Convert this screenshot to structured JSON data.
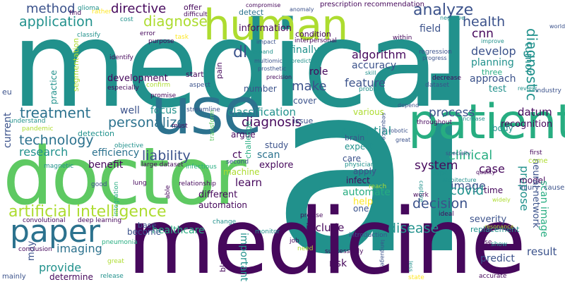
{
  "palette": {
    "dark_purple": "#46085c",
    "indigo": "#3b528b",
    "blue": "#2c728e",
    "teal": "#21918c",
    "green_teal": "#27ad81",
    "green": "#5ec962",
    "lime": "#addc30",
    "yellow": "#fde725"
  },
  "words": [
    {
      "text": "medical",
      "color": "teal"
    },
    {
      "text": "ai",
      "color": "teal"
    },
    {
      "text": "medicine",
      "color": "dark_purple"
    },
    {
      "text": "doctor",
      "color": "green"
    },
    {
      "text": "use",
      "color": "blue"
    },
    {
      "text": "patient",
      "color": "green_teal"
    },
    {
      "text": "human",
      "color": "lime"
    },
    {
      "text": "paper",
      "color": "blue"
    },
    {
      "text": "artificial intelligence",
      "color": "lime"
    },
    {
      "text": "diagnose",
      "color": "lime"
    },
    {
      "text": "method",
      "color": "indigo"
    },
    {
      "text": "directive",
      "color": "dark_purple"
    },
    {
      "text": "application",
      "color": "teal"
    },
    {
      "text": "analyze",
      "color": "indigo"
    },
    {
      "text": "health",
      "color": "indigo"
    },
    {
      "text": "cnn",
      "color": "dark_purple"
    },
    {
      "text": "information",
      "color": "dark_purple"
    },
    {
      "text": "dl",
      "color": "indigo"
    },
    {
      "text": "field",
      "color": "indigo"
    },
    {
      "text": "diagnostic",
      "color": "teal"
    },
    {
      "text": "treatment",
      "color": "blue"
    },
    {
      "text": "personalize",
      "color": "blue"
    },
    {
      "text": "algorithm",
      "color": "dark_purple"
    },
    {
      "text": "accuracy",
      "color": "indigo"
    },
    {
      "text": "develop",
      "color": "indigo"
    },
    {
      "text": "planning",
      "color": "teal"
    },
    {
      "text": "approach",
      "color": "indigo"
    },
    {
      "text": "tumor",
      "color": "teal"
    },
    {
      "text": "feature",
      "color": "indigo"
    },
    {
      "text": "make",
      "color": "indigo"
    },
    {
      "text": "role",
      "color": "dark_purple"
    },
    {
      "text": "finally",
      "color": "teal"
    },
    {
      "text": "number",
      "color": "indigo"
    },
    {
      "text": "test",
      "color": "teal"
    },
    {
      "text": "three",
      "color": "green_teal"
    },
    {
      "text": "technology",
      "color": "blue"
    },
    {
      "text": "research",
      "color": "teal"
    },
    {
      "text": "efficiency",
      "color": "blue"
    },
    {
      "text": "detection",
      "color": "teal"
    },
    {
      "text": "development",
      "color": "dark_purple"
    },
    {
      "text": "classification",
      "color": "teal"
    },
    {
      "text": "diagnosis",
      "color": "dark_purple"
    },
    {
      "text": "process",
      "color": "indigo"
    },
    {
      "text": "datum",
      "color": "dark_purple"
    },
    {
      "text": "recognition",
      "color": "dark_purple"
    },
    {
      "text": "body",
      "color": "teal"
    },
    {
      "text": "liability",
      "color": "indigo"
    },
    {
      "text": "potential",
      "color": "teal"
    },
    {
      "text": "clinical",
      "color": "green_teal"
    },
    {
      "text": "case",
      "color": "dark_purple"
    },
    {
      "text": "system",
      "color": "dark_purple"
    },
    {
      "text": "image",
      "color": "indigo"
    },
    {
      "text": "benefit",
      "color": "dark_purple"
    },
    {
      "text": "ct",
      "color": "dark_purple"
    },
    {
      "text": "scan",
      "color": "blue"
    },
    {
      "text": "study",
      "color": "indigo"
    },
    {
      "text": "focus",
      "color": "teal"
    },
    {
      "text": "argue",
      "color": "dark_purple"
    },
    {
      "text": "cover",
      "color": "indigo"
    },
    {
      "text": "various",
      "color": "lime"
    },
    {
      "text": "expect",
      "color": "teal"
    },
    {
      "text": "brain",
      "color": "indigo"
    },
    {
      "text": "covid",
      "color": "teal"
    },
    {
      "text": "decision",
      "color": "indigo"
    },
    {
      "text": "propose",
      "color": "teal"
    },
    {
      "text": "model",
      "color": "dark_purple"
    },
    {
      "text": "time",
      "color": "dark_purple"
    },
    {
      "text": "explore",
      "color": "dark_purple"
    },
    {
      "text": "care",
      "color": "indigo"
    },
    {
      "text": "apply",
      "color": "indigo"
    },
    {
      "text": "infect",
      "color": "dark_purple"
    },
    {
      "text": "machine",
      "color": "lime"
    },
    {
      "text": "learn",
      "color": "dark_purple"
    },
    {
      "text": "different",
      "color": "dark_purple"
    },
    {
      "text": "automation",
      "color": "dark_purple"
    },
    {
      "text": "automate",
      "color": "green_teal"
    },
    {
      "text": "help",
      "color": "yellow"
    },
    {
      "text": "one",
      "color": "indigo"
    },
    {
      "text": "include",
      "color": "dark_purple"
    },
    {
      "text": "disease",
      "color": "teal"
    },
    {
      "text": "severity",
      "color": "indigo"
    },
    {
      "text": "healthcare",
      "color": "green_teal"
    },
    {
      "text": "become",
      "color": "indigo"
    },
    {
      "text": "imaging",
      "color": "blue"
    },
    {
      "text": "provide",
      "color": "teal"
    },
    {
      "text": "may",
      "color": "indigo"
    },
    {
      "text": "determine",
      "color": "dark_purple"
    },
    {
      "text": "important",
      "color": "teal"
    },
    {
      "text": "risk",
      "color": "dark_purple"
    },
    {
      "text": "predict",
      "color": "indigo"
    },
    {
      "text": "result",
      "color": "indigo"
    },
    {
      "text": "scan image",
      "color": "green_teal"
    },
    {
      "text": "neural network",
      "color": "indigo"
    },
    {
      "text": "replacement",
      "color": "teal"
    },
    {
      "text": "current",
      "color": "indigo"
    },
    {
      "text": "practice",
      "color": "teal"
    },
    {
      "text": "segmentation",
      "color": "lime"
    },
    {
      "text": "challenge",
      "color": "green_teal"
    },
    {
      "text": "blackbox",
      "color": "dark_purple"
    },
    {
      "text": "pain",
      "color": "dark_purple"
    },
    {
      "text": "start",
      "color": "dark_purple"
    },
    {
      "text": "offer",
      "color": "dark_purple"
    },
    {
      "text": "eu",
      "color": "indigo"
    },
    {
      "text": "well",
      "color": "indigo"
    },
    {
      "text": "condition",
      "color": "dark_purple"
    },
    {
      "text": "detect",
      "color": "blue"
    },
    {
      "text": "issue",
      "color": "indigo"
    },
    {
      "text": "large dataset",
      "color": "dark_purple"
    },
    {
      "text": "mainly",
      "color": "indigo"
    },
    {
      "text": "glioma",
      "color": "teal"
    },
    {
      "text": "find",
      "color": "dark_purple"
    },
    {
      "text": "rather",
      "color": "yellow"
    },
    {
      "text": "difficult",
      "color": "dark_purple"
    },
    {
      "text": "cost",
      "color": "teal"
    },
    {
      "text": "error",
      "color": "dark_purple"
    },
    {
      "text": "task",
      "color": "yellow"
    },
    {
      "text": "classify",
      "color": "teal"
    },
    {
      "text": "purpose",
      "color": "dark_purple"
    },
    {
      "text": "identify",
      "color": "dark_purple"
    },
    {
      "text": "especially",
      "color": "dark_purple"
    },
    {
      "text": "confirm",
      "color": "lime"
    },
    {
      "text": "promise",
      "color": "dark_purple"
    },
    {
      "text": "aspect",
      "color": "indigo"
    },
    {
      "text": "streamline",
      "color": "indigo"
    },
    {
      "text": "transform",
      "color": "green"
    },
    {
      "text": "must",
      "color": "dark_purple"
    },
    {
      "text": "understand",
      "color": "teal"
    },
    {
      "text": "pandemic",
      "color": "lime"
    },
    {
      "text": "objective",
      "color": "teal"
    },
    {
      "text": "magnetic",
      "color": "teal"
    },
    {
      "text": "good",
      "color": "indigo"
    },
    {
      "text": "integration",
      "color": "green_teal"
    },
    {
      "text": "lung",
      "color": "dark_purple"
    },
    {
      "text": "able",
      "color": "dark_purple"
    },
    {
      "text": "infectious",
      "color": "green_teal"
    },
    {
      "text": "second",
      "color": "indigo"
    },
    {
      "text": "relationship",
      "color": "dark_purple"
    },
    {
      "text": "base",
      "color": "indigo"
    },
    {
      "text": "convolutional",
      "color": "dark_purple"
    },
    {
      "text": "deep learning",
      "color": "dark_purple"
    },
    {
      "text": "conclusion",
      "color": "dark_purple"
    },
    {
      "text": "pneumonia",
      "color": "green_teal"
    },
    {
      "text": "great",
      "color": "lime"
    },
    {
      "text": "release",
      "color": "teal"
    },
    {
      "text": "change",
      "color": "teal"
    },
    {
      "text": "monitor",
      "color": "teal"
    },
    {
      "text": "precise",
      "color": "dark_purple"
    },
    {
      "text": "physician",
      "color": "teal"
    },
    {
      "text": "reach",
      "color": "lime"
    },
    {
      "text": "job",
      "color": "dark_purple"
    },
    {
      "text": "need",
      "color": "lime"
    },
    {
      "text": "introduction",
      "color": "indigo"
    },
    {
      "text": "successfully",
      "color": "dark_purple"
    },
    {
      "text": "language",
      "color": "indigo"
    },
    {
      "text": "state",
      "color": "yellow"
    },
    {
      "text": "less",
      "color": "teal"
    },
    {
      "text": "accurate",
      "color": "dark_purple"
    },
    {
      "text": "show",
      "color": "teal"
    },
    {
      "text": "pose",
      "color": "dark_purple"
    },
    {
      "text": "ideal",
      "color": "dark_purple"
    },
    {
      "text": "work",
      "color": "dark_purple"
    },
    {
      "text": "capture",
      "color": "teal"
    },
    {
      "text": "resonance",
      "color": "lime"
    },
    {
      "text": "widely",
      "color": "lime"
    },
    {
      "text": "injury",
      "color": "indigo"
    },
    {
      "text": "cause",
      "color": "indigo"
    },
    {
      "text": "come",
      "color": "lime"
    },
    {
      "text": "first",
      "color": "dark_purple"
    },
    {
      "text": "specialty",
      "color": "indigo"
    },
    {
      "text": "quality",
      "color": "dark_purple"
    },
    {
      "text": "type",
      "color": "teal"
    },
    {
      "text": "architecture",
      "color": "teal"
    },
    {
      "text": "throughout",
      "color": "dark_purple"
    },
    {
      "text": "increase",
      "color": "teal"
    },
    {
      "text": "depend",
      "color": "indigo"
    },
    {
      "text": "rise",
      "color": "teal"
    },
    {
      "text": "robotic",
      "color": "indigo"
    },
    {
      "text": "great",
      "color": "indigo"
    },
    {
      "text": "sequence",
      "color": "indigo"
    },
    {
      "text": "decrease",
      "color": "dark_purple"
    },
    {
      "text": "dataset",
      "color": "indigo"
    },
    {
      "text": "problem",
      "color": "teal"
    },
    {
      "text": "skill",
      "color": "teal"
    },
    {
      "text": "review",
      "color": "teal"
    },
    {
      "text": "industry",
      "color": "indigo"
    },
    {
      "text": "regression",
      "color": "indigo"
    },
    {
      "text": "progress",
      "color": "indigo"
    },
    {
      "text": "improve",
      "color": "teal"
    },
    {
      "text": "within",
      "color": "dark_purple"
    },
    {
      "text": "negative",
      "color": "teal"
    },
    {
      "text": "world",
      "color": "indigo"
    },
    {
      "text": "anomaly",
      "color": "indigo"
    },
    {
      "text": "compromise",
      "color": "dark_purple"
    },
    {
      "text": "prescription recommendation",
      "color": "dark_purple"
    },
    {
      "text": "impact",
      "color": "indigo"
    },
    {
      "text": "interpersonal",
      "color": "dark_purple"
    },
    {
      "text": "expand",
      "color": "teal"
    },
    {
      "text": "multiomic",
      "color": "indigo"
    },
    {
      "text": "prediction",
      "color": "teal"
    },
    {
      "text": "prosthetic",
      "color": "indigo"
    },
    {
      "text": "precision",
      "color": "dark_purple"
    }
  ]
}
